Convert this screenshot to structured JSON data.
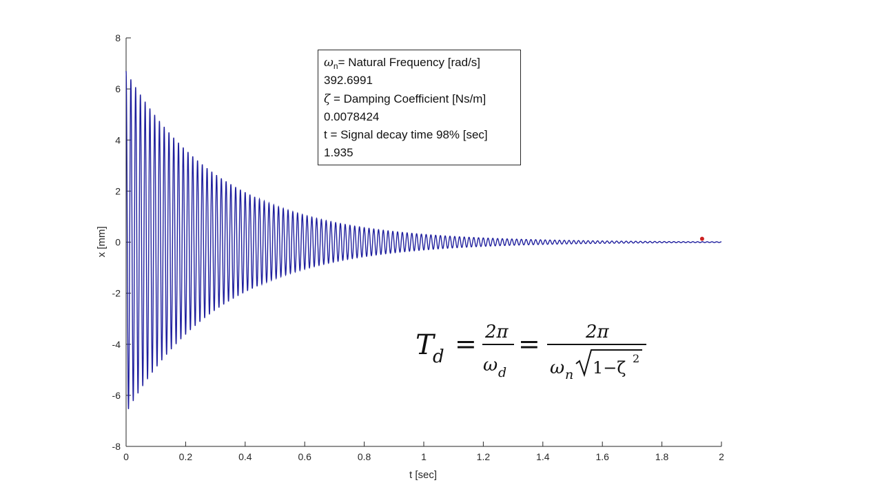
{
  "chart_data": {
    "type": "line",
    "title": "",
    "xlabel": "t [sec]",
    "ylabel": "x [mm]",
    "xlim": [
      0,
      2
    ],
    "ylim": [
      -8,
      8
    ],
    "xticks": [
      "0",
      "0.2",
      "0.4",
      "0.6",
      "0.8",
      "1",
      "1.2",
      "1.4",
      "1.6",
      "1.8",
      "2"
    ],
    "yticks": [
      "-8",
      "-6",
      "-4",
      "-2",
      "0",
      "2",
      "4",
      "6",
      "8"
    ],
    "grid": false,
    "series": [
      {
        "color": "#1f1f9e",
        "model": {
          "kind": "damped-cosine",
          "amplitude_mm": 6.7,
          "natural_frequency_rad_s": 392.6991,
          "damping_ratio": 0.0078424,
          "t_start_s": 0,
          "t_end_s": 2
        }
      }
    ],
    "marker": {
      "x": 1.935,
      "y": 0.13,
      "color": "#cc2222"
    }
  },
  "info_box": {
    "wn_symbol": "ω",
    "wn_subscript": "n",
    "wn_label": "= Natural Frequency [rad/s]",
    "wn_value": "392.6991",
    "zeta_symbol": "ζ",
    "zeta_label": " = Damping Coefficient [Ns/m]",
    "zeta_value": "0.0078424",
    "t_label": "t = Signal decay time 98% [sec]",
    "t_value": "1.935"
  },
  "formula": {
    "lhs": "T",
    "lhs_sub": "d",
    "equals": "=",
    "frac1_num": "2π",
    "frac1_den": "ω",
    "frac1_den_sub": "d",
    "frac2_num": "2π",
    "frac2_den_symbol": "ω",
    "frac2_den_sub": "n",
    "frac2_den_radicand": "1−ζ",
    "frac2_den_exponent": "2"
  }
}
